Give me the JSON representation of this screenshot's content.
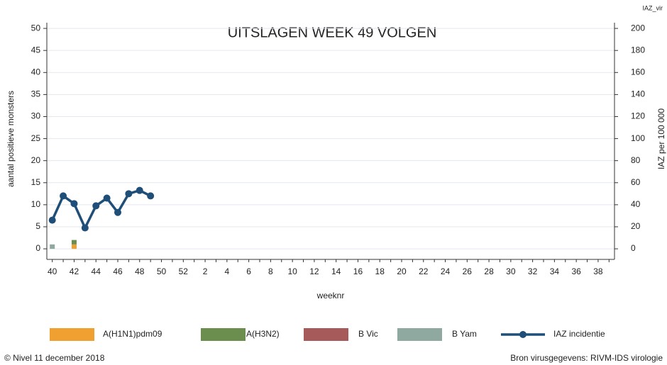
{
  "chart_data": {
    "type": "bar",
    "title": "UITSLAGEN WEEK 49 VOLGEN",
    "xlabel": "weeknr",
    "ylabel": "aantal positieve monsters",
    "y2label": "IAZ per 100 000",
    "y2_heading": "IAZ_vir",
    "copyright": "© Nivel 11 december 2018",
    "source": "Bron virusgegevens: RIVM-IDS virologie",
    "categories": [
      "40",
      null,
      "42",
      null,
      "44",
      null,
      "46",
      null,
      "48",
      null,
      "50",
      null,
      "52",
      null,
      "2",
      null,
      "4",
      null,
      "6",
      null,
      "8",
      null,
      "10",
      null,
      "12",
      null,
      "14",
      null,
      "16",
      null,
      "18",
      null,
      "20",
      null,
      "22",
      null,
      "24",
      null,
      "26",
      null,
      "28",
      null,
      "30",
      null,
      "32",
      null,
      "34",
      null,
      "36",
      null,
      "38",
      null
    ],
    "ylim": [
      -2.4,
      51.3
    ],
    "yticks": [
      0,
      5,
      10,
      15,
      20,
      25,
      30,
      35,
      40,
      45,
      50
    ],
    "y2lim": [
      -9.6,
      205.2
    ],
    "y2ticks": [
      0,
      20,
      40,
      60,
      80,
      100,
      120,
      140,
      160,
      180,
      200
    ],
    "grid": true,
    "stacked": true,
    "series": [
      {
        "name": "A(H1N1)pdm09",
        "color": "#f0a030",
        "values": [
          0,
          0,
          1,
          0,
          0,
          0,
          0,
          0,
          0,
          0,
          0,
          0,
          0,
          0,
          0,
          0,
          0,
          0,
          0,
          0,
          0,
          0,
          0,
          0,
          0,
          0,
          0,
          0,
          0,
          0,
          0,
          0,
          0,
          0,
          0,
          0,
          0,
          0,
          0,
          0,
          0,
          0,
          0,
          0,
          0,
          0,
          0,
          0,
          0,
          0,
          0,
          0
        ]
      },
      {
        "name": "A(H3N2)",
        "color": "#6b8e4e",
        "values": [
          0,
          0,
          1,
          0,
          0,
          0,
          0,
          0,
          0,
          0,
          0,
          0,
          0,
          0,
          0,
          0,
          0,
          0,
          0,
          0,
          0,
          0,
          0,
          0,
          0,
          0,
          0,
          0,
          0,
          0,
          0,
          0,
          0,
          0,
          0,
          0,
          0,
          0,
          0,
          0,
          0,
          0,
          0,
          0,
          0,
          0,
          0,
          0,
          0,
          0,
          0,
          0
        ]
      },
      {
        "name": "B Vic",
        "color": "#a65a5a",
        "values": [
          0,
          0,
          0,
          0,
          0,
          0,
          0,
          0,
          0,
          0,
          0,
          0,
          0,
          0,
          0,
          0,
          0,
          0,
          0,
          0,
          0,
          0,
          0,
          0,
          0,
          0,
          0,
          0,
          0,
          0,
          0,
          0,
          0,
          0,
          0,
          0,
          0,
          0,
          0,
          0,
          0,
          0,
          0,
          0,
          0,
          0,
          0,
          0,
          0,
          0,
          0,
          0
        ]
      },
      {
        "name": "B Yam",
        "color": "#8fa8a0",
        "values": [
          1,
          0,
          0,
          0,
          0,
          0,
          0,
          0,
          0,
          0,
          0,
          0,
          0,
          0,
          0,
          0,
          0,
          0,
          0,
          0,
          0,
          0,
          0,
          0,
          0,
          0,
          0,
          0,
          0,
          0,
          0,
          0,
          0,
          0,
          0,
          0,
          0,
          0,
          0,
          0,
          0,
          0,
          0,
          0,
          0,
          0,
          0,
          0,
          0,
          0,
          0,
          0
        ]
      },
      {
        "name": "IAZ incidentie",
        "type": "line",
        "axis": "y2",
        "color": "#1f4e79",
        "values": [
          26,
          48,
          41,
          19,
          39,
          46,
          33,
          50,
          53,
          48,
          null,
          null,
          null,
          null,
          null,
          null,
          null,
          null,
          null,
          null,
          null,
          null,
          null,
          null,
          null,
          null,
          null,
          null,
          null,
          null,
          null,
          null,
          null,
          null,
          null,
          null,
          null,
          null,
          null,
          null,
          null,
          null,
          null,
          null,
          null,
          null,
          null,
          null,
          null,
          null,
          null,
          null
        ]
      }
    ]
  }
}
